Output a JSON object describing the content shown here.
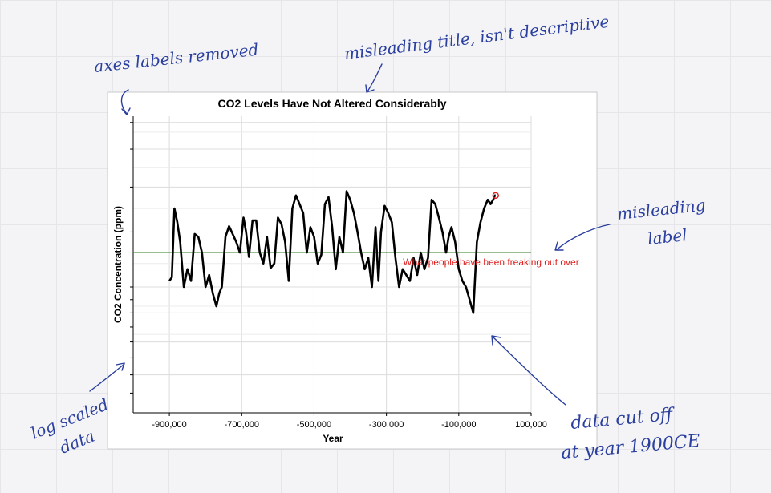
{
  "chart_data": {
    "type": "line",
    "title": "CO2 Levels Have Not Altered Considerably",
    "xlabel": "Year",
    "ylabel": "CO2 Concentration (ppm)",
    "x_ticks": [
      "-900,000",
      "-700,000",
      "-500,000",
      "-300,000",
      "-100,000",
      "100,000"
    ],
    "x_tick_values": [
      -900000,
      -700000,
      -500000,
      -300000,
      -100000,
      100000
    ],
    "xlim": [
      -1000000,
      100000
    ],
    "y_scale": "log",
    "ylim": [
      120,
      400
    ],
    "y_tick_labels": [],
    "grid": true,
    "reference_line": {
      "value": 230,
      "color": "#2e7d1e"
    },
    "series": [
      {
        "color": "#000000",
        "x": [
          -900000,
          -893000,
          -886000,
          -878000,
          -870000,
          -860000,
          -850000,
          -840000,
          -830000,
          -820000,
          -810000,
          -800000,
          -790000,
          -780000,
          -770000,
          -762000,
          -755000,
          -745000,
          -735000,
          -725000,
          -715000,
          -705000,
          -695000,
          -688000,
          -680000,
          -670000,
          -660000,
          -650000,
          -640000,
          -630000,
          -620000,
          -610000,
          -600000,
          -590000,
          -580000,
          -570000,
          -560000,
          -550000,
          -540000,
          -530000,
          -520000,
          -510000,
          -500000,
          -490000,
          -480000,
          -470000,
          -460000,
          -450000,
          -440000,
          -430000,
          -420000,
          -410000,
          -400000,
          -390000,
          -380000,
          -370000,
          -360000,
          -350000,
          -340000,
          -330000,
          -322000,
          -315000,
          -305000,
          -295000,
          -285000,
          -275000,
          -265000,
          -255000,
          -245000,
          -235000,
          -225000,
          -215000,
          -205000,
          -195000,
          -185000,
          -175000,
          -165000,
          -155000,
          -145000,
          -135000,
          -128000,
          -120000,
          -110000,
          -100000,
          -90000,
          -80000,
          -70000,
          -60000,
          -50000,
          -40000,
          -30000,
          -20000,
          -12000,
          -5000,
          0,
          1900
        ],
        "values": [
          205,
          208,
          275,
          260,
          240,
          200,
          215,
          205,
          248,
          245,
          230,
          200,
          210,
          195,
          185,
          195,
          200,
          245,
          256,
          248,
          240,
          230,
          265,
          250,
          226,
          262,
          262,
          230,
          220,
          245,
          216,
          220,
          265,
          258,
          240,
          205,
          275,
          290,
          280,
          270,
          230,
          255,
          245,
          220,
          228,
          280,
          288,
          255,
          215,
          245,
          230,
          295,
          285,
          270,
          250,
          230,
          215,
          225,
          200,
          255,
          205,
          250,
          278,
          270,
          260,
          225,
          200,
          215,
          210,
          205,
          225,
          210,
          230,
          215,
          225,
          285,
          280,
          265,
          250,
          230,
          245,
          255,
          240,
          215,
          205,
          200,
          190,
          180,
          240,
          260,
          275,
          285,
          280,
          285,
          290,
          290
        ]
      }
    ],
    "annotation": {
      "text": "What people have been freaking out over",
      "x": 1900,
      "y": 290,
      "color": "#e02020"
    }
  },
  "notes": [
    {
      "text": "axes labels removed"
    },
    {
      "text": "misleading title, isn't descriptive"
    },
    {
      "text": "misleading label"
    },
    {
      "text": "log scaled data"
    },
    {
      "text": "data cut off at year 1900CE"
    }
  ]
}
